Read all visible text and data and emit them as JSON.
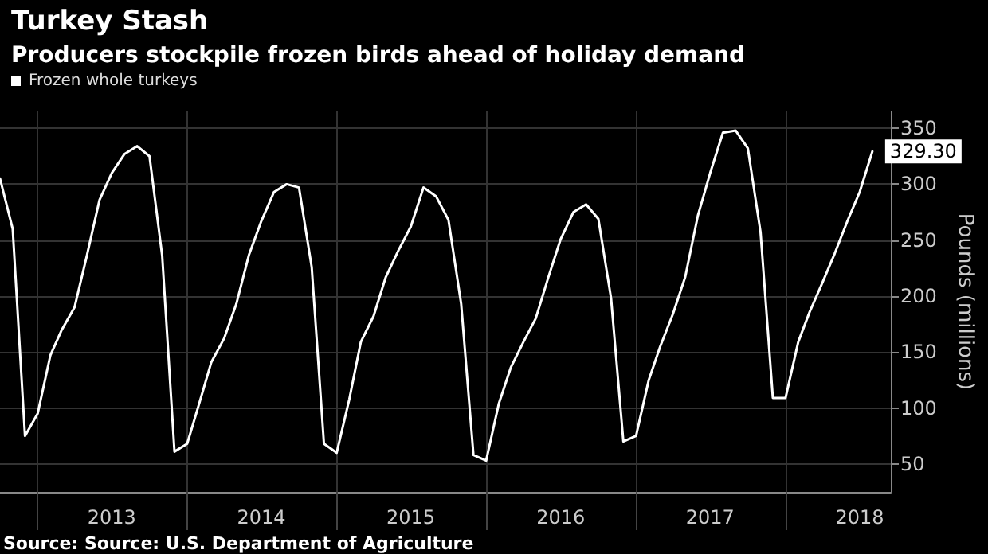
{
  "chart_data": {
    "type": "line",
    "title": "Turkey Stash",
    "subtitle": "Producers stockpile frozen birds ahead of holiday demand",
    "ylabel": "Pounds (millions)",
    "annotations": [
      "Source: Source: U.S. Department of Agriculture"
    ],
    "x": [
      "2012-10",
      "2012-11",
      "2012-12",
      "2013-01",
      "2013-02",
      "2013-03",
      "2013-04",
      "2013-05",
      "2013-06",
      "2013-07",
      "2013-08",
      "2013-09",
      "2013-10",
      "2013-11",
      "2013-12",
      "2014-01",
      "2014-02",
      "2014-03",
      "2014-04",
      "2014-05",
      "2014-06",
      "2014-07",
      "2014-08",
      "2014-09",
      "2014-10",
      "2014-11",
      "2014-12",
      "2015-01",
      "2015-02",
      "2015-03",
      "2015-04",
      "2015-05",
      "2015-06",
      "2015-07",
      "2015-08",
      "2015-09",
      "2015-10",
      "2015-11",
      "2015-12",
      "2016-01",
      "2016-02",
      "2016-03",
      "2016-04",
      "2016-05",
      "2016-06",
      "2016-07",
      "2016-08",
      "2016-09",
      "2016-10",
      "2016-11",
      "2016-12",
      "2017-01",
      "2017-02",
      "2017-03",
      "2017-04",
      "2017-05",
      "2017-06",
      "2017-07",
      "2017-08",
      "2017-09",
      "2017-10",
      "2017-11",
      "2017-12",
      "2018-01",
      "2018-02",
      "2018-03",
      "2018-04",
      "2018-05",
      "2018-06",
      "2018-07",
      "2018-08"
    ],
    "series": [
      {
        "name": "Frozen whole turkeys",
        "color": "#ffffff",
        "values": [
          305,
          260,
          75,
          95,
          147,
          170,
          190,
          236,
          286,
          310,
          327,
          334,
          325,
          236,
          61,
          68,
          106,
          141,
          162,
          193,
          237,
          267,
          293,
          300,
          297,
          226,
          68,
          60,
          108,
          159,
          182,
          217,
          241,
          262,
          297,
          289,
          268,
          193,
          58,
          53,
          104,
          136,
          159,
          180,
          217,
          251,
          275,
          282,
          269,
          198,
          70,
          75,
          125,
          155,
          184,
          217,
          272,
          310,
          346,
          348,
          332,
          257,
          109,
          109,
          159,
          186,
          212,
          238,
          267,
          293,
          329.3
        ],
        "value_labels": [
          null,
          null,
          null,
          null,
          null,
          null,
          null,
          null,
          null,
          null,
          null,
          null,
          null,
          null,
          null,
          null,
          null,
          null,
          null,
          null,
          null,
          null,
          null,
          null,
          null,
          null,
          null,
          null,
          null,
          null,
          null,
          null,
          null,
          null,
          null,
          null,
          null,
          null,
          null,
          null,
          null,
          null,
          null,
          null,
          null,
          null,
          null,
          null,
          null,
          null,
          null,
          null,
          null,
          null,
          null,
          null,
          null,
          null,
          null,
          null,
          null,
          null,
          null,
          null,
          null,
          null,
          null,
          null,
          null,
          null,
          "329.30"
        ]
      }
    ],
    "xlim": [
      "2012-10",
      "2018-09-15"
    ],
    "xticks": [
      {
        "value": "2013-01",
        "label": null
      },
      {
        "value": "2013-07",
        "label": "2013"
      },
      {
        "value": "2014-01",
        "label": null
      },
      {
        "value": "2014-07",
        "label": "2014"
      },
      {
        "value": "2015-01",
        "label": null
      },
      {
        "value": "2015-07",
        "label": "2015"
      },
      {
        "value": "2016-01",
        "label": null
      },
      {
        "value": "2016-07",
        "label": "2016"
      },
      {
        "value": "2017-01",
        "label": null
      },
      {
        "value": "2017-07",
        "label": "2017"
      },
      {
        "value": "2018-01",
        "label": null
      },
      {
        "value": "2018-07",
        "label": "2018"
      }
    ],
    "ylim": [
      25,
      365
    ],
    "yticks": [
      50,
      100,
      150,
      200,
      250,
      300,
      350
    ],
    "grid": true,
    "legend": "top left",
    "marker": "none",
    "line_style": "solid"
  }
}
